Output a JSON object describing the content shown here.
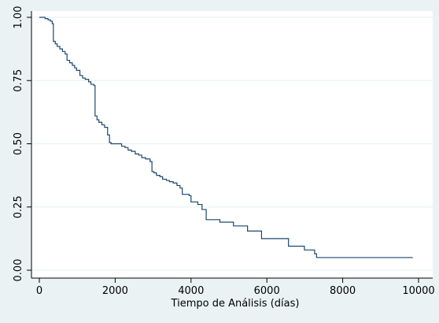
{
  "chart_data": {
    "type": "line",
    "title": "",
    "xlabel": "Tiempo de Análisis (días)",
    "ylabel": "",
    "xlim": [
      0,
      10000
    ],
    "ylim": [
      0,
      1
    ],
    "x_ticks": [
      0,
      2000,
      4000,
      6000,
      8000,
      10000
    ],
    "x_tick_labels": [
      "0",
      "2000",
      "4000",
      "6000",
      "8000",
      "10000"
    ],
    "y_ticks": [
      0,
      0.25,
      0.5,
      0.75,
      1
    ],
    "y_tick_labels": [
      "0.00",
      "0.25",
      "0.50",
      "0.75",
      "1.00"
    ],
    "grid": "horizontal",
    "legend": "none",
    "colors": {
      "background": "#eaf2f3",
      "plot_area": "#ffffff",
      "line": "#1a476f",
      "grid": "#eaf2f3"
    },
    "series": [
      {
        "step": "post",
        "points": [
          [
            0,
            1.0
          ],
          [
            150,
            0.995
          ],
          [
            230,
            0.99
          ],
          [
            290,
            0.985
          ],
          [
            340,
            0.975
          ],
          [
            370,
            0.905
          ],
          [
            420,
            0.895
          ],
          [
            470,
            0.885
          ],
          [
            540,
            0.875
          ],
          [
            610,
            0.865
          ],
          [
            680,
            0.855
          ],
          [
            730,
            0.83
          ],
          [
            800,
            0.82
          ],
          [
            870,
            0.81
          ],
          [
            930,
            0.8
          ],
          [
            980,
            0.79
          ],
          [
            1070,
            0.77
          ],
          [
            1140,
            0.76
          ],
          [
            1210,
            0.755
          ],
          [
            1300,
            0.745
          ],
          [
            1360,
            0.735
          ],
          [
            1440,
            0.73
          ],
          [
            1470,
            0.61
          ],
          [
            1520,
            0.595
          ],
          [
            1570,
            0.585
          ],
          [
            1650,
            0.575
          ],
          [
            1720,
            0.565
          ],
          [
            1800,
            0.535
          ],
          [
            1850,
            0.505
          ],
          [
            1890,
            0.5
          ],
          [
            2170,
            0.49
          ],
          [
            2260,
            0.485
          ],
          [
            2340,
            0.475
          ],
          [
            2430,
            0.47
          ],
          [
            2530,
            0.46
          ],
          [
            2620,
            0.455
          ],
          [
            2700,
            0.445
          ],
          [
            2800,
            0.44
          ],
          [
            2920,
            0.43
          ],
          [
            2970,
            0.39
          ],
          [
            3020,
            0.385
          ],
          [
            3090,
            0.375
          ],
          [
            3180,
            0.37
          ],
          [
            3250,
            0.36
          ],
          [
            3350,
            0.355
          ],
          [
            3430,
            0.35
          ],
          [
            3530,
            0.345
          ],
          [
            3630,
            0.335
          ],
          [
            3710,
            0.325
          ],
          [
            3770,
            0.3
          ],
          [
            3950,
            0.295
          ],
          [
            4000,
            0.27
          ],
          [
            4180,
            0.26
          ],
          [
            4290,
            0.24
          ],
          [
            4400,
            0.2
          ],
          [
            4760,
            0.19
          ],
          [
            5120,
            0.175
          ],
          [
            5490,
            0.155
          ],
          [
            5860,
            0.125
          ],
          [
            6570,
            0.095
          ],
          [
            6990,
            0.08
          ],
          [
            7260,
            0.065
          ],
          [
            7310,
            0.05
          ],
          [
            9850,
            0.05
          ]
        ]
      }
    ]
  }
}
